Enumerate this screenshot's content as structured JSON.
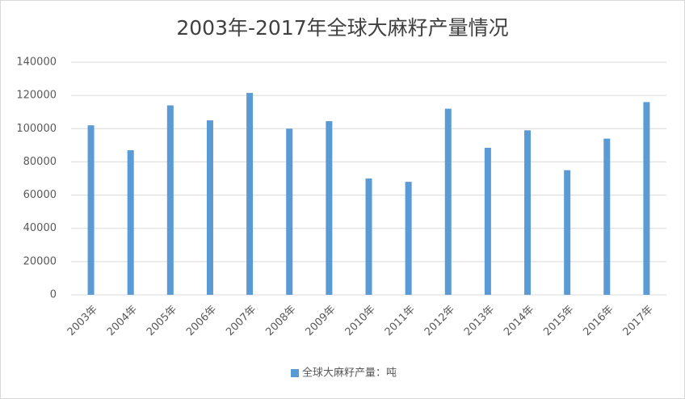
{
  "chart_data": {
    "type": "bar",
    "title": "2003年-2017年全球大麻籽产量情况",
    "categories": [
      "2003年",
      "2004年",
      "2005年",
      "2006年",
      "2007年",
      "2008年",
      "2009年",
      "2010年",
      "2011年",
      "2012年",
      "2013年",
      "2014年",
      "2015年",
      "2016年",
      "2017年"
    ],
    "series": [
      {
        "name": "全球大麻籽产量：吨",
        "color": "#5b9bd5",
        "values": [
          102000,
          87000,
          114000,
          105000,
          121500,
          100000,
          104500,
          70000,
          68000,
          112000,
          88500,
          99000,
          75000,
          94000,
          116000
        ]
      }
    ],
    "ylim": [
      0,
      140000
    ],
    "yticks": [
      0,
      20000,
      40000,
      60000,
      80000,
      100000,
      120000,
      140000
    ],
    "grid": true,
    "legend": "bottom"
  }
}
